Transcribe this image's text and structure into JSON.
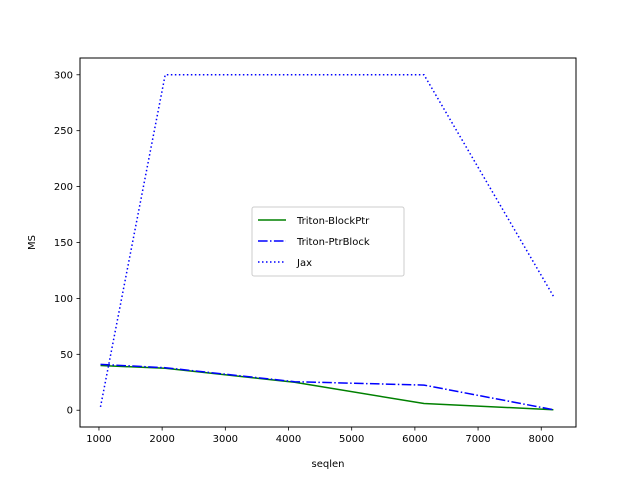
{
  "chart_data": {
    "type": "line",
    "title": "",
    "xlabel": "seqlen",
    "ylabel": "MS",
    "xlim": [
      700,
      8550
    ],
    "ylim": [
      -15,
      315
    ],
    "xticks": [
      1000,
      2000,
      3000,
      4000,
      5000,
      6000,
      7000,
      8000
    ],
    "yticks": [
      0,
      50,
      100,
      150,
      200,
      250,
      300
    ],
    "grid": false,
    "legend_position": "center",
    "series": [
      {
        "name": "Triton-BlockPtr",
        "color": "#008000",
        "linestyle": "solid",
        "x": [
          1024,
          2048,
          4096,
          6144,
          8192
        ],
        "y": [
          40,
          37.5,
          25,
          6,
          0.5
        ]
      },
      {
        "name": "Triton-PtrBlock",
        "color": "#0000ff",
        "linestyle": "dashdot",
        "x": [
          1024,
          2048,
          4096,
          6144,
          8192
        ],
        "y": [
          41,
          38,
          25.5,
          22.5,
          0.5
        ]
      },
      {
        "name": "Jax",
        "color": "#0000ff",
        "linestyle": "dotted",
        "x": [
          1024,
          2048,
          4096,
          6144,
          8192
        ],
        "y": [
          3,
          300,
          300,
          300,
          102
        ]
      }
    ]
  }
}
